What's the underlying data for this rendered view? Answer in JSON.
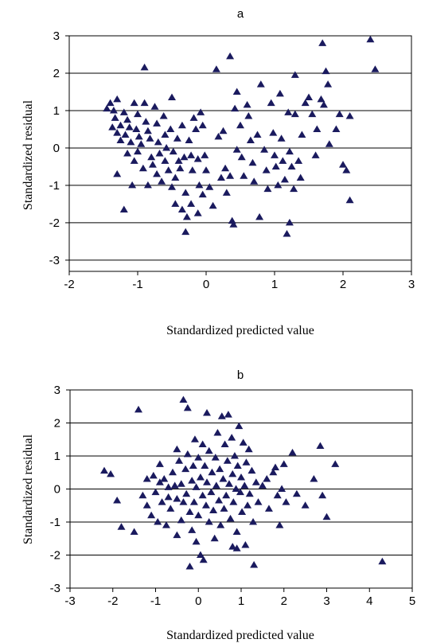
{
  "chart_data": [
    {
      "type": "scatter",
      "title": "a",
      "xlabel": "Standardized predicted value",
      "ylabel": "Standardized residual",
      "xlim": [
        -2,
        3
      ],
      "ylim": [
        -3.3,
        3
      ],
      "xticks": [
        -2,
        -1,
        0,
        1,
        2,
        3
      ],
      "yticks": [
        -3,
        -2,
        -1,
        0,
        1,
        2,
        3
      ],
      "xtick_labels": [
        "-2",
        "-1",
        "0",
        "1",
        "2",
        "3"
      ],
      "ytick_labels": [
        "-3",
        "-2",
        "-1",
        "0",
        "1",
        "2",
        "3"
      ],
      "grid": "horizontal",
      "marker": "triangle",
      "marker_color": "#1a1a5e",
      "points": [
        [
          -1.45,
          1.05
        ],
        [
          -1.4,
          1.2
        ],
        [
          -1.35,
          1.0
        ],
        [
          -1.3,
          1.3
        ],
        [
          -1.33,
          0.8
        ],
        [
          -1.37,
          0.55
        ],
        [
          -1.3,
          0.4
        ],
        [
          -1.25,
          0.2
        ],
        [
          -1.3,
          -0.7
        ],
        [
          -1.2,
          -1.65
        ],
        [
          -1.25,
          0.6
        ],
        [
          -1.2,
          0.95
        ],
        [
          -1.15,
          0.75
        ],
        [
          -1.12,
          0.55
        ],
        [
          -1.18,
          0.35
        ],
        [
          -1.1,
          0.15
        ],
        [
          -1.15,
          -0.15
        ],
        [
          -1.05,
          -0.35
        ],
        [
          -1.08,
          -1.0
        ],
        [
          -1.05,
          1.2
        ],
        [
          -1.0,
          0.9
        ],
        [
          -1.02,
          0.5
        ],
        [
          -0.98,
          0.3
        ],
        [
          -0.95,
          0.1
        ],
        [
          -1.0,
          -0.1
        ],
        [
          -0.92,
          -0.55
        ],
        [
          -0.9,
          1.2
        ],
        [
          -0.88,
          0.7
        ],
        [
          -0.85,
          0.45
        ],
        [
          -0.9,
          2.15
        ],
        [
          -0.82,
          0.25
        ],
        [
          -0.8,
          -0.25
        ],
        [
          -0.78,
          -0.45
        ],
        [
          -0.85,
          -1.0
        ],
        [
          -0.75,
          1.1
        ],
        [
          -0.72,
          0.65
        ],
        [
          -0.7,
          0.15
        ],
        [
          -0.68,
          -0.15
        ],
        [
          -0.72,
          -0.7
        ],
        [
          -0.65,
          -0.9
        ],
        [
          -0.62,
          0.85
        ],
        [
          -0.6,
          0.35
        ],
        [
          -0.58,
          0.0
        ],
        [
          -0.6,
          -0.35
        ],
        [
          -0.55,
          -0.6
        ],
        [
          -0.5,
          1.35
        ],
        [
          -0.52,
          0.5
        ],
        [
          -0.48,
          -0.1
        ],
        [
          -0.45,
          -0.8
        ],
        [
          -0.5,
          -1.05
        ],
        [
          -0.42,
          0.25
        ],
        [
          -0.4,
          -0.35
        ],
        [
          -0.38,
          -0.55
        ],
        [
          -0.45,
          -1.5
        ],
        [
          -0.35,
          0.6
        ],
        [
          -0.32,
          -0.25
        ],
        [
          -0.3,
          -1.2
        ],
        [
          -0.35,
          -1.65
        ],
        [
          -0.28,
          -1.85
        ],
        [
          -0.3,
          -2.25
        ],
        [
          -0.25,
          0.2
        ],
        [
          -0.22,
          -0.2
        ],
        [
          -0.2,
          -0.6
        ],
        [
          -0.22,
          -1.5
        ],
        [
          -0.18,
          0.8
        ],
        [
          -0.15,
          0.5
        ],
        [
          -0.12,
          -0.3
        ],
        [
          -0.1,
          -1.0
        ],
        [
          -0.12,
          -1.75
        ],
        [
          -0.08,
          0.95
        ],
        [
          -0.05,
          0.6
        ],
        [
          -0.02,
          -0.2
        ],
        [
          0.0,
          -0.6
        ],
        [
          -0.05,
          -1.25
        ],
        [
          0.05,
          -1.05
        ],
        [
          0.1,
          -1.55
        ],
        [
          0.15,
          2.1
        ],
        [
          0.18,
          0.3
        ],
        [
          0.22,
          -0.8
        ],
        [
          0.25,
          0.45
        ],
        [
          0.28,
          -0.55
        ],
        [
          0.3,
          -1.2
        ],
        [
          0.35,
          2.45
        ],
        [
          0.35,
          -0.75
        ],
        [
          0.38,
          -1.95
        ],
        [
          0.4,
          -2.05
        ],
        [
          0.42,
          1.05
        ],
        [
          0.45,
          1.5
        ],
        [
          0.45,
          -0.05
        ],
        [
          0.5,
          0.6
        ],
        [
          0.52,
          -0.25
        ],
        [
          0.55,
          -0.75
        ],
        [
          0.6,
          1.15
        ],
        [
          0.62,
          0.85
        ],
        [
          0.65,
          0.2
        ],
        [
          0.68,
          -0.4
        ],
        [
          0.7,
          -0.9
        ],
        [
          0.75,
          0.35
        ],
        [
          0.78,
          -1.85
        ],
        [
          0.8,
          1.7
        ],
        [
          0.85,
          -0.05
        ],
        [
          0.88,
          -0.6
        ],
        [
          0.9,
          -1.1
        ],
        [
          0.95,
          1.2
        ],
        [
          0.98,
          0.4
        ],
        [
          1.0,
          -0.2
        ],
        [
          1.02,
          -0.5
        ],
        [
          1.05,
          -1.0
        ],
        [
          1.08,
          1.45
        ],
        [
          1.1,
          0.25
        ],
        [
          1.12,
          -0.35
        ],
        [
          1.15,
          -0.85
        ],
        [
          1.18,
          -2.3
        ],
        [
          1.2,
          0.95
        ],
        [
          1.22,
          -0.1
        ],
        [
          1.22,
          -2.0
        ],
        [
          1.25,
          -0.5
        ],
        [
          1.28,
          -1.1
        ],
        [
          1.3,
          1.95
        ],
        [
          1.3,
          0.9
        ],
        [
          1.35,
          -0.35
        ],
        [
          1.38,
          -0.8
        ],
        [
          1.4,
          0.35
        ],
        [
          1.45,
          1.2
        ],
        [
          1.5,
          1.35
        ],
        [
          1.55,
          0.9
        ],
        [
          1.6,
          -0.2
        ],
        [
          1.62,
          0.5
        ],
        [
          1.68,
          1.3
        ],
        [
          1.7,
          2.8
        ],
        [
          1.72,
          1.15
        ],
        [
          1.75,
          2.05
        ],
        [
          1.78,
          1.7
        ],
        [
          1.8,
          0.1
        ],
        [
          1.9,
          0.5
        ],
        [
          1.95,
          0.9
        ],
        [
          2.0,
          -0.45
        ],
        [
          2.05,
          -0.6
        ],
        [
          2.1,
          0.85
        ],
        [
          2.1,
          -1.4
        ],
        [
          2.4,
          2.9
        ],
        [
          2.47,
          2.1
        ]
      ]
    },
    {
      "type": "scatter",
      "title": "b",
      "xlabel": "Standardized predicted value",
      "ylabel": "Standardized residual",
      "xlim": [
        -3,
        5
      ],
      "ylim": [
        -3,
        3
      ],
      "xticks": [
        -3,
        -2,
        -1,
        0,
        1,
        2,
        3,
        4,
        5
      ],
      "yticks": [
        -3,
        -2,
        -1,
        0,
        1,
        2,
        3
      ],
      "xtick_labels": [
        "-3",
        "-2",
        "-1",
        "0",
        "1",
        "2",
        "3",
        "4",
        "5"
      ],
      "ytick_labels": [
        "-3",
        "-2",
        "-1",
        "0",
        "1",
        "2",
        "3"
      ],
      "grid": "horizontal",
      "marker": "triangle",
      "marker_color": "#1a1a5e",
      "points": [
        [
          -2.2,
          0.55
        ],
        [
          -2.05,
          0.45
        ],
        [
          -1.9,
          -0.35
        ],
        [
          -1.8,
          -1.15
        ],
        [
          -1.5,
          -1.3
        ],
        [
          -1.4,
          2.4
        ],
        [
          -1.3,
          -0.2
        ],
        [
          -1.2,
          -0.5
        ],
        [
          -1.1,
          -0.8
        ],
        [
          -1.05,
          0.4
        ],
        [
          -1.0,
          -0.1
        ],
        [
          -0.95,
          -1.0
        ],
        [
          -0.9,
          0.2
        ],
        [
          -0.85,
          -0.4
        ],
        [
          -0.8,
          0.3
        ],
        [
          -0.75,
          -1.1
        ],
        [
          -0.7,
          0.05
        ],
        [
          -0.65,
          -0.6
        ],
        [
          -0.6,
          0.5
        ],
        [
          -0.55,
          0.1
        ],
        [
          -0.5,
          -0.3
        ],
        [
          -0.5,
          1.2
        ],
        [
          -0.45,
          0.85
        ],
        [
          -0.4,
          -0.95
        ],
        [
          -0.4,
          0.15
        ],
        [
          -0.35,
          2.7
        ],
        [
          -0.35,
          -0.4
        ],
        [
          -0.3,
          0.6
        ],
        [
          -0.28,
          -0.15
        ],
        [
          -0.25,
          2.45
        ],
        [
          -0.25,
          1.05
        ],
        [
          -0.2,
          -0.7
        ],
        [
          -0.2,
          -2.35
        ],
        [
          -0.15,
          0.25
        ],
        [
          -0.15,
          -1.25
        ],
        [
          -0.12,
          0.7
        ],
        [
          -0.1,
          -0.4
        ],
        [
          -0.08,
          1.5
        ],
        [
          -0.05,
          0.05
        ],
        [
          -0.05,
          -1.6
        ],
        [
          0.0,
          0.95
        ],
        [
          0.0,
          -0.8
        ],
        [
          0.05,
          -2.0
        ],
        [
          0.05,
          0.35
        ],
        [
          0.1,
          -0.2
        ],
        [
          0.1,
          1.35
        ],
        [
          0.12,
          -2.15
        ],
        [
          0.15,
          0.7
        ],
        [
          0.18,
          -0.5
        ],
        [
          0.2,
          2.3
        ],
        [
          0.2,
          0.2
        ],
        [
          0.25,
          -1.0
        ],
        [
          0.25,
          1.15
        ],
        [
          0.3,
          -0.1
        ],
        [
          0.32,
          0.5
        ],
        [
          0.35,
          -0.65
        ],
        [
          0.38,
          -1.5
        ],
        [
          0.4,
          0.95
        ],
        [
          0.42,
          0.1
        ],
        [
          0.45,
          1.7
        ],
        [
          0.48,
          -0.35
        ],
        [
          0.5,
          0.6
        ],
        [
          0.52,
          -1.1
        ],
        [
          0.55,
          2.2
        ],
        [
          0.58,
          0.3
        ],
        [
          0.6,
          -0.6
        ],
        [
          0.62,
          1.35
        ],
        [
          0.65,
          -0.2
        ],
        [
          0.68,
          0.85
        ],
        [
          0.7,
          2.25
        ],
        [
          0.72,
          0.15
        ],
        [
          0.75,
          -0.9
        ],
        [
          0.78,
          1.55
        ],
        [
          0.8,
          0.45
        ],
        [
          0.82,
          -0.4
        ],
        [
          0.85,
          1.0
        ],
        [
          0.88,
          0.0
        ],
        [
          0.9,
          -1.3
        ],
        [
          0.92,
          0.7
        ],
        [
          0.95,
          1.9
        ],
        [
          0.98,
          -0.1
        ],
        [
          1.0,
          0.35
        ],
        [
          1.02,
          -0.7
        ],
        [
          1.05,
          1.4
        ],
        [
          1.08,
          0.1
        ],
        [
          1.1,
          -1.7
        ],
        [
          1.12,
          0.8
        ],
        [
          1.15,
          -0.5
        ],
        [
          1.18,
          1.2
        ],
        [
          1.2,
          -0.15
        ],
        [
          1.25,
          0.55
        ],
        [
          1.28,
          -1.0
        ],
        [
          1.3,
          -2.3
        ],
        [
          1.35,
          0.2
        ],
        [
          1.4,
          -0.4
        ],
        [
          1.5,
          0.1
        ],
        [
          1.6,
          0.3
        ],
        [
          1.65,
          -0.6
        ],
        [
          1.75,
          0.5
        ],
        [
          1.8,
          0.65
        ],
        [
          1.85,
          -0.2
        ],
        [
          1.9,
          -1.1
        ],
        [
          1.95,
          0.0
        ],
        [
          2.0,
          0.75
        ],
        [
          2.05,
          -0.4
        ],
        [
          2.2,
          1.1
        ],
        [
          2.3,
          -0.15
        ],
        [
          2.5,
          -0.5
        ],
        [
          2.7,
          0.3
        ],
        [
          2.85,
          1.3
        ],
        [
          2.9,
          -0.2
        ],
        [
          3.0,
          -0.85
        ],
        [
          3.2,
          0.75
        ],
        [
          4.3,
          -2.2
        ],
        [
          0.9,
          -1.8
        ],
        [
          0.8,
          -1.75
        ],
        [
          -0.5,
          -1.4
        ],
        [
          -0.7,
          -0.25
        ],
        [
          -1.2,
          0.3
        ],
        [
          -0.9,
          0.75
        ]
      ]
    }
  ]
}
